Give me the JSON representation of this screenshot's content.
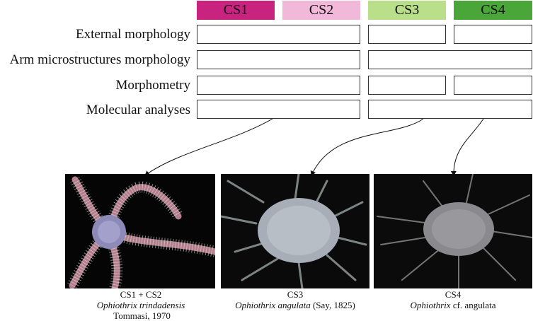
{
  "headers": [
    {
      "label": "CS1",
      "color": "#c8237f"
    },
    {
      "label": "CS2",
      "color": "#f2b8d9"
    },
    {
      "label": "CS3",
      "color": "#b9df8a"
    },
    {
      "label": "CS4",
      "color": "#4ba63a"
    }
  ],
  "rows": [
    {
      "label": "External morphology"
    },
    {
      "label": "Arm microstructures morphology"
    },
    {
      "label": "Morphometry"
    },
    {
      "label": "Molecular analyses"
    }
  ],
  "captions": [
    {
      "line1": "CS1 + CS2",
      "italic": "Ophiothrix trindadensis",
      "rest": " Tommasi, 1970"
    },
    {
      "line1": "CS3",
      "italic": "Ophiothrix angulata",
      "rest": " (Say, 1825)"
    },
    {
      "line1": "CS4",
      "italic": "Ophiothrix",
      "rest": " cf. angulata"
    }
  ]
}
